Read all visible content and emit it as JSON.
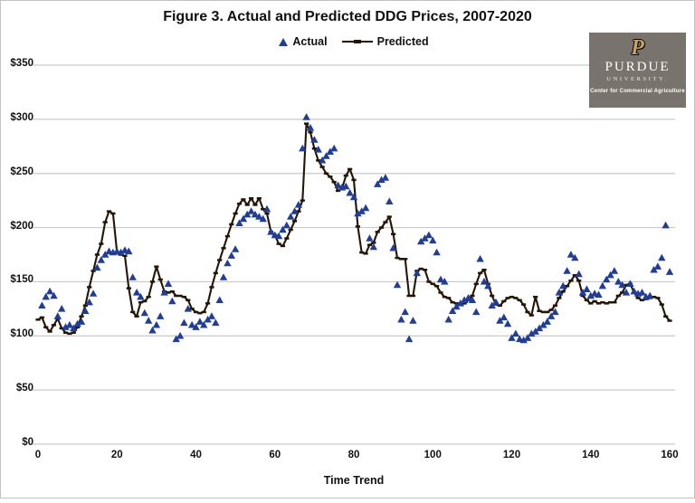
{
  "title": "Figure 3. Actual and Predicted DDG Prices, 2007-2020",
  "legend": {
    "actual_label": "Actual",
    "predicted_label": "Predicted"
  },
  "axes": {
    "x_label": "Time Trend"
  },
  "logo": {
    "p": "P",
    "name": "PURDUE",
    "university": "UNIVERSITY.",
    "center": "Center for Commercial Agriculture"
  },
  "colors": {
    "actual": "#1F3D99",
    "predicted": "#241505",
    "gridline": "#C9C9C9",
    "frame": "#C3C3C3",
    "logo_bg": "#78746D",
    "logo_gold": "#C9A25D"
  },
  "chart_data": {
    "type": "line",
    "title": "Figure 3. Actual and Predicted DDG Prices, 2007-2020",
    "xlabel": "Time Trend",
    "ylabel": "",
    "xlim": [
      0,
      160
    ],
    "ylim": [
      0,
      350
    ],
    "x_ticks": [
      0,
      20,
      40,
      60,
      80,
      100,
      120,
      140,
      160
    ],
    "y_ticks": [
      0,
      50,
      100,
      150,
      200,
      250,
      300,
      350
    ],
    "y_tick_prefix": "$",
    "grid": true,
    "legend_position": "top-center",
    "series": [
      {
        "name": "Actual",
        "type": "scatter",
        "marker": "triangle",
        "color": "#1F3D99",
        "x_start": 1,
        "x_step": 1,
        "values": [
          128,
          136,
          141,
          137,
          118,
          125,
          108,
          110,
          107,
          111,
          113,
          123,
          131,
          139,
          163,
          170,
          175,
          178,
          177,
          178,
          177,
          179,
          178,
          154,
          140,
          136,
          121,
          114,
          105,
          110,
          118,
          140,
          148,
          132,
          97,
          100,
          112,
          125,
          110,
          108,
          113,
          110,
          115,
          118,
          112,
          133,
          154,
          167,
          174,
          180,
          204,
          208,
          212,
          215,
          212,
          210,
          208,
          217,
          196,
          193,
          192,
          198,
          202,
          210,
          215,
          221,
          273,
          302,
          292,
          281,
          272,
          262,
          266,
          270,
          273,
          239,
          237,
          238,
          232,
          228,
          213,
          215,
          218,
          190,
          182,
          240,
          244,
          246,
          224,
          181,
          147,
          115,
          122,
          97,
          114,
          158,
          187,
          190,
          193,
          188,
          177,
          152,
          150,
          115,
          123,
          127,
          130,
          133,
          135,
          133,
          122,
          171,
          150,
          146,
          128,
          131,
          114,
          117,
          111,
          98,
          102,
          97,
          96,
          98,
          102,
          104,
          107,
          110,
          113,
          118,
          122,
          140,
          146,
          160,
          175,
          172,
          157,
          140,
          143,
          137,
          139,
          138,
          146,
          152,
          156,
          160,
          150,
          147,
          140,
          148,
          141,
          139,
          140,
          136,
          137,
          161,
          164,
          172,
          202,
          159
        ]
      },
      {
        "name": "Predicted",
        "type": "line",
        "marker": "dash",
        "color": "#241505",
        "x_start": 0,
        "x_step": 1,
        "values": [
          115,
          117,
          108,
          104,
          110,
          116,
          107,
          103,
          102,
          103,
          108,
          118,
          128,
          145,
          160,
          175,
          185,
          205,
          215,
          213,
          177,
          175,
          174,
          144,
          122,
          118,
          131,
          132,
          136,
          150,
          164,
          152,
          141,
          140,
          141,
          137,
          137,
          136,
          133,
          125,
          122,
          121,
          122,
          130,
          145,
          158,
          170,
          181,
          192,
          203,
          213,
          222,
          226,
          221,
          227,
          221,
          227,
          217,
          213,
          196,
          193,
          185,
          183,
          190,
          198,
          206,
          215,
          225,
          296,
          288,
          273,
          262,
          256,
          250,
          247,
          242,
          234,
          236,
          248,
          254,
          244,
          201,
          177,
          176,
          184,
          186,
          196,
          200,
          205,
          210,
          194,
          172,
          171,
          171,
          137,
          137,
          160,
          162,
          161,
          150,
          148,
          146,
          140,
          136,
          135,
          131,
          130,
          129,
          130,
          133,
          137,
          148,
          158,
          161,
          148,
          137,
          129,
          128,
          132,
          135,
          136,
          135,
          133,
          129,
          122,
          119,
          136,
          123,
          122,
          122,
          124,
          128,
          135,
          141,
          146,
          151,
          156,
          151,
          137,
          133,
          130,
          132,
          130,
          131,
          130,
          131,
          131,
          137,
          140,
          147,
          148,
          140,
          135,
          133,
          134,
          135,
          136,
          135,
          129,
          118,
          114
        ]
      }
    ]
  }
}
